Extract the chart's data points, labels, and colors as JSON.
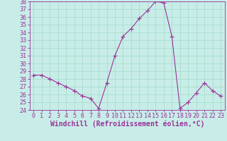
{
  "x": [
    0,
    1,
    2,
    3,
    4,
    5,
    6,
    7,
    8,
    9,
    10,
    11,
    12,
    13,
    14,
    15,
    16,
    17,
    18,
    19,
    20,
    21,
    22,
    23
  ],
  "y": [
    28.5,
    28.5,
    28.0,
    27.5,
    27.0,
    26.5,
    25.8,
    25.5,
    24.2,
    27.5,
    31.0,
    33.5,
    34.5,
    35.8,
    36.8,
    38.0,
    37.8,
    33.5,
    24.2,
    25.0,
    26.2,
    27.5,
    26.5,
    25.8
  ],
  "ylim": [
    24,
    38
  ],
  "yticks": [
    24,
    25,
    26,
    27,
    28,
    29,
    30,
    31,
    32,
    33,
    34,
    35,
    36,
    37,
    38
  ],
  "xticks": [
    0,
    1,
    2,
    3,
    4,
    5,
    6,
    7,
    8,
    9,
    10,
    11,
    12,
    13,
    14,
    15,
    16,
    17,
    18,
    19,
    20,
    21,
    22,
    23
  ],
  "line_color": "#993399",
  "marker": "+",
  "marker_size": 4,
  "background_color": "#c8ede8",
  "grid_color": "#aaddcc",
  "xlabel": "Windchill (Refroidissement éolien,°C)",
  "xlabel_fontsize": 7,
  "tick_fontsize": 6,
  "figsize": [
    3.2,
    2.0
  ],
  "dpi": 100
}
